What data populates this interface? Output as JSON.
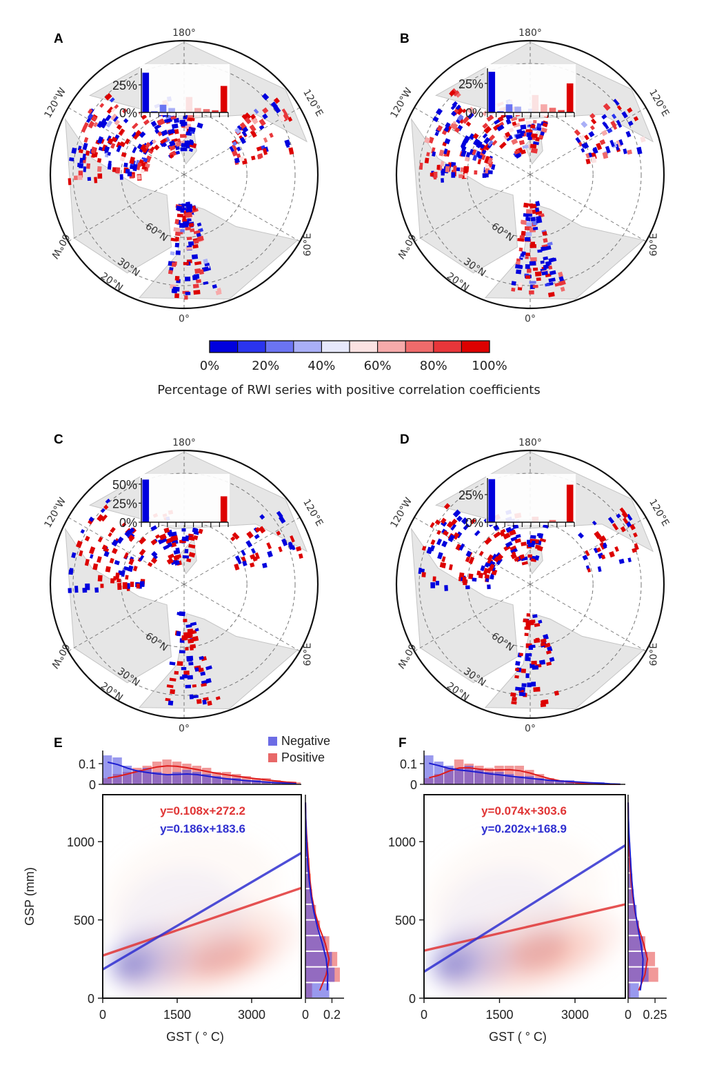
{
  "figure": {
    "panel_labels": [
      "A",
      "B",
      "C",
      "D",
      "E",
      "F"
    ],
    "colorbar": {
      "title": "Percentage of RWI series with positive correlation coefficients",
      "ticks": [
        "0%",
        "20%",
        "40%",
        "60%",
        "80%",
        "100%"
      ],
      "colors": [
        "#0000dd",
        "#2a34ee",
        "#6b74f2",
        "#a9aff7",
        "#e6e8fb",
        "#fbe2e2",
        "#f6aaaa",
        "#ef6b6b",
        "#e8363a",
        "#dd0000"
      ]
    }
  },
  "chart_data": [
    {
      "panel": "A",
      "type": "bar",
      "map_labels": {
        "top": "180°",
        "bottom": "0°",
        "upper_left": "120°W",
        "upper_right": "120°E",
        "lower_left": "60°W",
        "lower_right": "60°E",
        "lat60": "60°N",
        "lat30": "30°N",
        "lat20": "20°N"
      },
      "inset_yticks": [
        "0%",
        "25%"
      ],
      "inset_ymax": 40,
      "categories": [
        "0-10%",
        "10-20%",
        "20-30%",
        "30-40%",
        "40-50%",
        "50-60%",
        "60-70%",
        "70-80%",
        "80-90%",
        "90-100%"
      ],
      "values": [
        36,
        1,
        7,
        4,
        0,
        14,
        4,
        3,
        2,
        24
      ]
    },
    {
      "panel": "B",
      "type": "bar",
      "map_labels": {
        "top": "180°",
        "bottom": "0°",
        "upper_left": "120°W",
        "upper_right": "120°E",
        "lower_left": "60°W",
        "lower_right": "60°E",
        "lat60": "60°N",
        "lat30": "30°N",
        "lat20": "20°N"
      },
      "inset_yticks": [
        "0%",
        "25%"
      ],
      "inset_ymax": 38,
      "categories": [
        "0-10%",
        "10-20%",
        "20-30%",
        "30-40%",
        "40-50%",
        "50-60%",
        "60-70%",
        "70-80%",
        "80-90%",
        "90-100%"
      ],
      "values": [
        35,
        1,
        7,
        5,
        0,
        15,
        7,
        4,
        2,
        25
      ]
    },
    {
      "panel": "C",
      "type": "bar",
      "map_labels": {
        "top": "180°",
        "bottom": "0°",
        "upper_left": "120°W",
        "upper_right": "120°E",
        "lower_left": "60°W",
        "lower_right": "60°E",
        "lat60": "60°N",
        "lat30": "30°N",
        "lat20": "20°N"
      },
      "inset_yticks": [
        "0%",
        "25%",
        "50%"
      ],
      "inset_ymax": 58,
      "categories": [
        "0-10%",
        "10-20%",
        "20-30%",
        "30-40%",
        "40-50%",
        "50-60%",
        "60-70%",
        "70-80%",
        "80-90%",
        "90-100%"
      ],
      "values": [
        56,
        0,
        0,
        0,
        0,
        0,
        1,
        1,
        0,
        34
      ]
    },
    {
      "panel": "D",
      "type": "bar",
      "map_labels": {
        "top": "180°",
        "bottom": "0°",
        "upper_left": "120°W",
        "upper_right": "120°E",
        "lower_left": "60°W",
        "lower_right": "60°E",
        "lat60": "60°N",
        "lat30": "30°N",
        "lat20": "20°N"
      },
      "inset_yticks": [
        "0%",
        "25%"
      ],
      "inset_ymax": 40,
      "categories": [
        "0-10%",
        "10-20%",
        "20-30%",
        "30-40%",
        "40-50%",
        "50-60%",
        "60-70%",
        "70-80%",
        "80-90%",
        "90-100%"
      ],
      "values": [
        39,
        0,
        0,
        0,
        0,
        5,
        0,
        2,
        0,
        34
      ]
    },
    {
      "panel": "E",
      "type": "scatter",
      "legend": [
        {
          "name": "Negative",
          "color": "#3b3bdc"
        },
        {
          "name": "Positive",
          "color": "#e03535"
        }
      ],
      "xlabel": "GST ( ° C)",
      "ylabel": "GSP (mm)",
      "xlim": [
        0,
        4000
      ],
      "ylim": [
        0,
        1300
      ],
      "xticks": [
        0,
        1500,
        3000
      ],
      "yticks": [
        0,
        500,
        1000
      ],
      "fits": [
        {
          "name": "Positive",
          "equation": "y=0.108x+272.2",
          "slope": 0.108,
          "intercept": 272.2,
          "color": "#e03535"
        },
        {
          "name": "Negative",
          "equation": "y=0.186x+183.6",
          "slope": 0.186,
          "intercept": 183.6,
          "color": "#2f2fd0"
        }
      ],
      "top_marginal": {
        "yticks": [
          "0",
          "0.1"
        ],
        "ymax": 0.15,
        "bins_negative": [
          0.14,
          0.13,
          0.09,
          0.07,
          0.08,
          0.06,
          0.05,
          0.06,
          0.07,
          0.06,
          0.05,
          0.04,
          0.03,
          0.03,
          0.02,
          0.02,
          0.01,
          0.01,
          0.01,
          0.0
        ],
        "bins_positive": [
          0.03,
          0.05,
          0.06,
          0.08,
          0.09,
          0.11,
          0.12,
          0.11,
          0.1,
          0.09,
          0.08,
          0.06,
          0.06,
          0.05,
          0.04,
          0.03,
          0.03,
          0.02,
          0.01,
          0.01
        ]
      },
      "right_marginal": {
        "xticks": [
          "0",
          "0.2"
        ],
        "xmax": 0.26,
        "bins_negative": [
          0.18,
          0.22,
          0.2,
          0.15,
          0.1,
          0.07,
          0.05,
          0.03,
          0.02,
          0.01,
          0.01,
          0.0,
          0.0
        ],
        "bins_positive": [
          0.05,
          0.26,
          0.24,
          0.18,
          0.11,
          0.08,
          0.05,
          0.04,
          0.03,
          0.02,
          0.01,
          0.0,
          0.0
        ]
      }
    },
    {
      "panel": "F",
      "type": "scatter",
      "xlabel": "GST ( ° C)",
      "xlim": [
        0,
        4000
      ],
      "ylim": [
        0,
        1300
      ],
      "xticks": [
        0,
        1500,
        3000
      ],
      "yticks": [
        0,
        500,
        1000
      ],
      "fits": [
        {
          "name": "Positive",
          "equation": "y=0.074x+303.6",
          "slope": 0.074,
          "intercept": 303.6,
          "color": "#e03535"
        },
        {
          "name": "Negative",
          "equation": "y=0.202x+168.9",
          "slope": 0.202,
          "intercept": 168.9,
          "color": "#2f2fd0"
        }
      ],
      "top_marginal": {
        "yticks": [
          "0",
          "0.1"
        ],
        "ymax": 0.15,
        "bins_negative": [
          0.14,
          0.11,
          0.09,
          0.08,
          0.09,
          0.07,
          0.06,
          0.06,
          0.05,
          0.04,
          0.04,
          0.03,
          0.02,
          0.02,
          0.02,
          0.01,
          0.01,
          0.01,
          0.0,
          0.0
        ],
        "bins_positive": [
          0.03,
          0.05,
          0.08,
          0.12,
          0.1,
          0.09,
          0.08,
          0.09,
          0.09,
          0.09,
          0.07,
          0.05,
          0.03,
          0.02,
          0.01,
          0.01,
          0.0,
          0.0,
          0.0,
          0.0
        ]
      },
      "right_marginal": {
        "xticks": [
          "0",
          "0.25"
        ],
        "xmax": 0.32,
        "bins_negative": [
          0.1,
          0.19,
          0.18,
          0.14,
          0.1,
          0.08,
          0.05,
          0.04,
          0.03,
          0.02,
          0.01,
          0.0,
          0.0
        ],
        "bins_positive": [
          0.02,
          0.28,
          0.25,
          0.16,
          0.1,
          0.07,
          0.05,
          0.03,
          0.02,
          0.01,
          0.01,
          0.0,
          0.0
        ]
      }
    }
  ]
}
